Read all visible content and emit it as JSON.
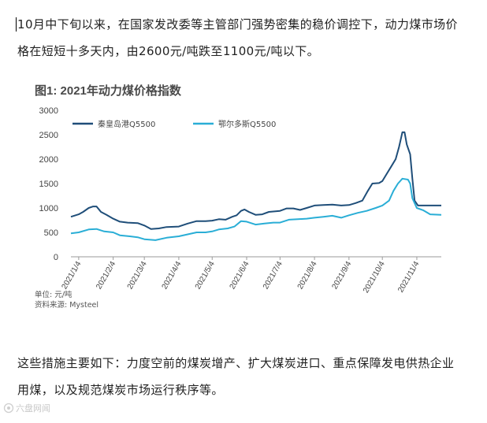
{
  "article": {
    "paragraph_top": [
      "10月中下旬以来，在国家发改委等主管部门强势密集的稳价调控下，动力煤市场价",
      "格在短短十多天内，由2600元/吨跌至1100元/吨以下。"
    ],
    "paragraph_bottom": [
      "这些措施主要如下：力度空前的煤炭增产、扩大煤炭进口、重点保障发电供热企业",
      "用煤，以及规范煤炭市场运行秩序等。"
    ]
  },
  "chart_data": {
    "type": "line",
    "title": "图1: 2021年动力煤价格指数",
    "xlabel": "",
    "ylabel": "",
    "ylim": [
      0,
      3000
    ],
    "xlim": [
      "2020-12-28",
      "2021-11-26"
    ],
    "yticks": [
      0,
      500,
      1000,
      1500,
      2000,
      2500,
      3000
    ],
    "xticks": [
      "2021/1/4",
      "2021/2/4",
      "2021/3/4",
      "2021/4/4",
      "2021/5/4",
      "2021/6/4",
      "2021/7/4",
      "2021/8/4",
      "2021/9/4",
      "2021/10/4",
      "2021/11/4"
    ],
    "grid": false,
    "legend": "top-left",
    "unit": "单位: 元/吨",
    "source": "资料来源: Mysteel",
    "series": [
      {
        "name": "秦皇岛港Q5500",
        "color": "#1f4e79",
        "points": [
          [
            "2020-12-28",
            820
          ],
          [
            "2021-01-04",
            870
          ],
          [
            "2021-01-08",
            920
          ],
          [
            "2021-01-13",
            1000
          ],
          [
            "2021-01-17",
            1030
          ],
          [
            "2021-01-20",
            1030
          ],
          [
            "2021-01-24",
            920
          ],
          [
            "2021-01-29",
            860
          ],
          [
            "2021-02-04",
            780
          ],
          [
            "2021-02-10",
            720
          ],
          [
            "2021-02-17",
            700
          ],
          [
            "2021-02-26",
            690
          ],
          [
            "2021-03-04",
            640
          ],
          [
            "2021-03-10",
            570
          ],
          [
            "2021-03-17",
            580
          ],
          [
            "2021-03-24",
            610
          ],
          [
            "2021-04-04",
            620
          ],
          [
            "2021-04-12",
            680
          ],
          [
            "2021-04-20",
            730
          ],
          [
            "2021-04-28",
            730
          ],
          [
            "2021-05-04",
            740
          ],
          [
            "2021-05-10",
            770
          ],
          [
            "2021-05-16",
            760
          ],
          [
            "2021-05-22",
            820
          ],
          [
            "2021-05-26",
            850
          ],
          [
            "2021-05-30",
            940
          ],
          [
            "2021-06-02",
            970
          ],
          [
            "2021-06-06",
            920
          ],
          [
            "2021-06-12",
            860
          ],
          [
            "2021-06-18",
            870
          ],
          [
            "2021-06-24",
            920
          ],
          [
            "2021-07-04",
            940
          ],
          [
            "2021-07-10",
            990
          ],
          [
            "2021-07-16",
            990
          ],
          [
            "2021-07-22",
            960
          ],
          [
            "2021-07-28",
            1000
          ],
          [
            "2021-08-04",
            1050
          ],
          [
            "2021-08-12",
            1060
          ],
          [
            "2021-08-20",
            1070
          ],
          [
            "2021-08-28",
            1050
          ],
          [
            "2021-09-04",
            1060
          ],
          [
            "2021-09-10",
            1100
          ],
          [
            "2021-09-16",
            1150
          ],
          [
            "2021-09-21",
            1350
          ],
          [
            "2021-09-25",
            1500
          ],
          [
            "2021-10-01",
            1510
          ],
          [
            "2021-10-04",
            1550
          ],
          [
            "2021-10-08",
            1700
          ],
          [
            "2021-10-12",
            1850
          ],
          [
            "2021-10-16",
            2000
          ],
          [
            "2021-10-19",
            2250
          ],
          [
            "2021-10-22",
            2550
          ],
          [
            "2021-10-24",
            2550
          ],
          [
            "2021-10-26",
            2300
          ],
          [
            "2021-10-29",
            2100
          ],
          [
            "2021-10-31",
            1600
          ],
          [
            "2021-11-02",
            1150
          ],
          [
            "2021-11-05",
            1050
          ],
          [
            "2021-11-26",
            1050
          ]
        ]
      },
      {
        "name": "鄂尔多斯Q5500",
        "color": "#2aaed6",
        "points": [
          [
            "2020-12-28",
            480
          ],
          [
            "2021-01-04",
            500
          ],
          [
            "2021-01-13",
            560
          ],
          [
            "2021-01-20",
            570
          ],
          [
            "2021-01-27",
            520
          ],
          [
            "2021-02-04",
            500
          ],
          [
            "2021-02-10",
            440
          ],
          [
            "2021-02-19",
            420
          ],
          [
            "2021-02-26",
            400
          ],
          [
            "2021-03-04",
            360
          ],
          [
            "2021-03-14",
            340
          ],
          [
            "2021-03-24",
            390
          ],
          [
            "2021-04-04",
            420
          ],
          [
            "2021-04-12",
            460
          ],
          [
            "2021-04-20",
            500
          ],
          [
            "2021-04-28",
            500
          ],
          [
            "2021-05-04",
            520
          ],
          [
            "2021-05-10",
            560
          ],
          [
            "2021-05-18",
            580
          ],
          [
            "2021-05-24",
            620
          ],
          [
            "2021-05-30",
            730
          ],
          [
            "2021-06-04",
            720
          ],
          [
            "2021-06-12",
            660
          ],
          [
            "2021-06-20",
            680
          ],
          [
            "2021-06-28",
            700
          ],
          [
            "2021-07-04",
            700
          ],
          [
            "2021-07-12",
            760
          ],
          [
            "2021-07-20",
            770
          ],
          [
            "2021-07-28",
            780
          ],
          [
            "2021-08-04",
            800
          ],
          [
            "2021-08-12",
            820
          ],
          [
            "2021-08-20",
            840
          ],
          [
            "2021-08-28",
            800
          ],
          [
            "2021-09-04",
            850
          ],
          [
            "2021-09-12",
            900
          ],
          [
            "2021-09-20",
            940
          ],
          [
            "2021-09-28",
            1000
          ],
          [
            "2021-10-04",
            1050
          ],
          [
            "2021-10-10",
            1150
          ],
          [
            "2021-10-14",
            1350
          ],
          [
            "2021-10-18",
            1500
          ],
          [
            "2021-10-22",
            1600
          ],
          [
            "2021-10-27",
            1580
          ],
          [
            "2021-10-29",
            1500
          ],
          [
            "2021-10-31",
            1200
          ],
          [
            "2021-11-04",
            1000
          ],
          [
            "2021-11-10",
            950
          ],
          [
            "2021-11-16",
            870
          ],
          [
            "2021-11-26",
            860
          ]
        ]
      }
    ]
  },
  "watermark": "六盘网闻",
  "colors": {
    "axis": "#9a9a9a",
    "text": "#222222",
    "chart_text": "#444444"
  }
}
